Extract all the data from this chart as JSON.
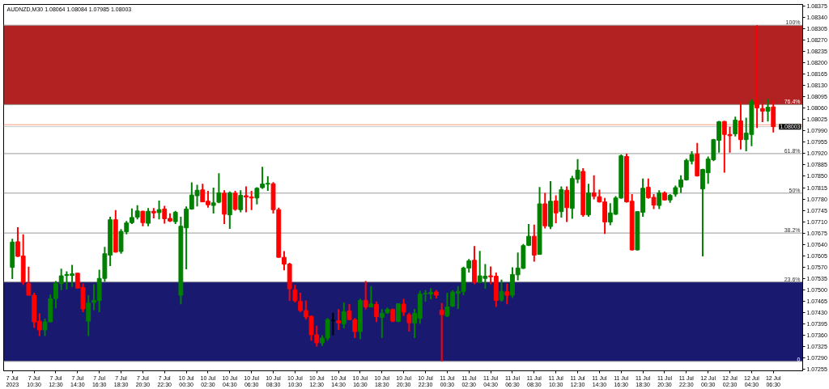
{
  "chart_data": {
    "type": "candlestick",
    "title": "AUDNZD,M30 1.08064 1.08084 1.07985 1.08003",
    "categories": [
      "7 Jul 2023",
      null,
      null,
      null,
      "7 Jul 10:30",
      null,
      null,
      null,
      "7 Jul 12:30",
      null,
      null,
      null,
      "7 Jul 14:30",
      null,
      null,
      null,
      "7 Jul 16:30",
      null,
      null,
      null,
      "7 Jul 18:30",
      null,
      null,
      null,
      "7 Jul 20:30",
      null,
      null,
      null,
      "7 Jul 22:30",
      null,
      null,
      null,
      "10 Jul 00:30",
      null,
      null,
      null,
      "10 Jul 02:30",
      null,
      null,
      null,
      "10 Jul 04:30",
      null,
      null,
      null,
      "10 Jul 06:30",
      null,
      null,
      null,
      "10 Jul 08:30",
      null,
      null,
      null,
      "10 Jul 10:30",
      null,
      null,
      null,
      "10 Jul 12:30",
      null,
      null,
      null,
      "10 Jul 14:30",
      null,
      null,
      null,
      "10 Jul 16:30",
      null,
      null,
      null,
      "10 Jul 18:30",
      null,
      null,
      null,
      "10 Jul 20:30",
      null,
      null,
      null,
      "10 Jul 22:30",
      null,
      null,
      null,
      "11 Jul 00:30",
      null,
      null,
      null,
      "11 Jul 02:30",
      null,
      null,
      null,
      "11 Jul 04:30",
      null,
      null,
      null,
      "11 Jul 06:30",
      null,
      null,
      null,
      "11 Jul 08:30",
      null,
      null,
      null,
      "11 Jul 10:30",
      null,
      null,
      null,
      "11 Jul 12:30",
      null,
      null,
      null,
      "11 Jul 14:30",
      null,
      null,
      null,
      "11 Jul 16:30",
      null,
      null,
      null,
      "11 Jul 18:30",
      null,
      null,
      null,
      "11 Jul 20:30",
      null,
      null,
      null,
      "11 Jul 22:30",
      null,
      null,
      null,
      "12 Jul 00:30",
      null,
      null,
      null,
      "12 Jul 02:30",
      null,
      null,
      null,
      "12 Jul 04:30",
      null,
      null,
      null,
      "12 Jul 06:30"
    ],
    "ohlc": [
      [
        1.07569,
        1.07657,
        1.07533,
        1.07647
      ],
      [
        1.07648,
        1.07693,
        1.07601,
        1.07603
      ],
      [
        1.07604,
        1.07671,
        1.07515,
        1.07523
      ],
      [
        1.07519,
        1.07571,
        1.07483,
        1.07483
      ],
      [
        1.07483,
        1.07491,
        1.07383,
        1.07401
      ],
      [
        1.07403,
        1.07427,
        1.07357,
        1.07376
      ],
      [
        1.07376,
        1.07411,
        1.07357,
        1.07401
      ],
      [
        1.07401,
        1.07485,
        1.074,
        1.07472
      ],
      [
        1.07473,
        1.07527,
        1.07443,
        1.07519
      ],
      [
        1.07519,
        1.07565,
        1.07499,
        1.07543
      ],
      [
        1.07544,
        1.07557,
        1.07501,
        1.07547
      ],
      [
        1.07544,
        1.07577,
        1.07509,
        1.07549
      ],
      [
        1.07551,
        1.07552,
        1.07503,
        1.07505
      ],
      [
        1.07507,
        1.07519,
        1.07431,
        1.07441
      ],
      [
        1.07403,
        1.07483,
        1.07357,
        1.07459
      ],
      [
        1.07461,
        1.07517,
        1.07437,
        1.07467
      ],
      [
        1.07467,
        1.07562,
        1.07431,
        1.07535
      ],
      [
        1.07535,
        1.07632,
        1.07525,
        1.07611
      ],
      [
        1.07607,
        1.07725,
        1.07573,
        1.07716
      ],
      [
        1.07716,
        1.07746,
        1.07615,
        1.07616
      ],
      [
        1.07618,
        1.07687,
        1.07611,
        1.0768
      ],
      [
        1.07679,
        1.07712,
        1.07671,
        1.07706
      ],
      [
        1.07707,
        1.07751,
        1.07703,
        1.07723
      ],
      [
        1.07724,
        1.07761,
        1.07717,
        1.07743
      ],
      [
        1.07742,
        1.07744,
        1.07696,
        1.07707
      ],
      [
        1.07705,
        1.07752,
        1.07696,
        1.07742
      ],
      [
        1.07742,
        1.07752,
        1.0772,
        1.07737
      ],
      [
        1.07738,
        1.07775,
        1.07717,
        1.07747
      ],
      [
        1.07749,
        1.07759,
        1.07704,
        1.07719
      ],
      [
        1.0772,
        1.07736,
        1.07709,
        1.07712
      ],
      [
        1.0771,
        1.07743,
        1.07703,
        1.07739
      ],
      [
        1.07483,
        1.07725,
        1.07455,
        1.07696
      ],
      [
        1.07691,
        1.07757,
        1.07563,
        1.07749
      ],
      [
        1.07749,
        1.07831,
        1.07747,
        1.07792
      ],
      [
        1.0779,
        1.07824,
        1.07757,
        1.07807
      ],
      [
        1.07808,
        1.07827,
        1.0777,
        1.07771
      ],
      [
        1.07773,
        1.07805,
        1.07753,
        1.07762
      ],
      [
        1.0776,
        1.07815,
        1.07735,
        1.07768
      ],
      [
        1.0777,
        1.07859,
        1.07767,
        1.07799
      ],
      [
        1.07798,
        1.07807,
        1.07703,
        1.07733
      ],
      [
        1.07731,
        1.07803,
        1.07688,
        1.07799
      ],
      [
        1.07798,
        1.07805,
        1.07744,
        1.07748
      ],
      [
        1.07747,
        1.07807,
        1.07739,
        1.07791
      ],
      [
        1.0779,
        1.07819,
        1.07739,
        1.07786
      ],
      [
        1.07786,
        1.07805,
        1.07746,
        1.07783
      ],
      [
        1.07783,
        1.07816,
        1.07763,
        1.07813
      ],
      [
        1.07815,
        1.07879,
        1.07811,
        1.07826
      ],
      [
        1.07826,
        1.0785,
        1.07805,
        1.07828
      ],
      [
        1.07827,
        1.07832,
        1.07735,
        1.07747
      ],
      [
        1.07747,
        1.07753,
        1.07599,
        1.076
      ],
      [
        1.076,
        1.07619,
        1.0756,
        1.07579
      ],
      [
        1.07579,
        1.07583,
        1.07466,
        1.07503
      ],
      [
        1.075,
        1.07515,
        1.07461,
        1.07466
      ],
      [
        1.07464,
        1.07491,
        1.07431,
        1.07436
      ],
      [
        1.07436,
        1.07467,
        1.07408,
        1.07416
      ],
      [
        1.07418,
        1.07421,
        1.07343,
        1.07361
      ],
      [
        1.07361,
        1.07389,
        1.07325,
        1.07336
      ],
      [
        1.07336,
        1.0736,
        1.07327,
        1.07351
      ],
      [
        1.07351,
        1.07413,
        1.07343,
        1.07408
      ],
      [
        1.07405,
        1.07429,
        1.0736,
        1.07405
      ],
      [
        1.07404,
        1.0744,
        1.07376,
        1.07398
      ],
      [
        1.07395,
        1.07461,
        1.07381,
        1.07432
      ],
      [
        1.07435,
        1.07456,
        1.07407,
        1.07408
      ],
      [
        1.07407,
        1.07413,
        1.07351,
        1.07371
      ],
      [
        1.07371,
        1.07472,
        1.07347,
        1.07467
      ],
      [
        1.07467,
        1.07527,
        1.07439,
        1.07447
      ],
      [
        1.07447,
        1.07511,
        1.07445,
        1.07456
      ],
      [
        1.07455,
        1.07464,
        1.074,
        1.07417
      ],
      [
        1.07415,
        1.0744,
        1.07351,
        1.07427
      ],
      [
        1.07429,
        1.07445,
        1.07426,
        1.07439
      ],
      [
        1.07439,
        1.07442,
        1.074,
        1.07403
      ],
      [
        1.07402,
        1.07458,
        1.074,
        1.07457
      ],
      [
        1.07456,
        1.07472,
        1.07419,
        1.07431
      ],
      [
        1.07423,
        1.07429,
        1.07371,
        1.07398
      ],
      [
        1.07397,
        1.07441,
        1.07351,
        1.07427
      ],
      [
        1.07412,
        1.07497,
        1.07395,
        1.07487
      ],
      [
        1.07487,
        1.07499,
        1.07463,
        1.07489
      ],
      [
        1.07487,
        1.07505,
        1.07471,
        1.07492
      ],
      [
        1.07493,
        1.07499,
        1.07473,
        1.07483
      ],
      [
        1.07437,
        1.07459,
        1.07279,
        1.07423
      ],
      [
        1.07419,
        1.07491,
        1.07415,
        1.07447
      ],
      [
        1.07449,
        1.07499,
        1.07447,
        1.07493
      ],
      [
        1.07489,
        1.07511,
        1.07441,
        1.07495
      ],
      [
        1.07495,
        1.07571,
        1.07483,
        1.07567
      ],
      [
        1.07567,
        1.07595,
        1.07553,
        1.07589
      ],
      [
        1.07591,
        1.07635,
        1.07517,
        1.07523
      ],
      [
        1.07523,
        1.0762,
        1.07521,
        1.07543
      ],
      [
        1.07535,
        1.07579,
        1.07503,
        1.07542
      ],
      [
        1.07543,
        1.07572,
        1.07517,
        1.0754
      ],
      [
        1.07542,
        1.07553,
        1.07447,
        1.07467
      ],
      [
        1.07468,
        1.07531,
        1.07463,
        1.07495
      ],
      [
        1.07494,
        1.07519,
        1.07455,
        1.07483
      ],
      [
        1.07483,
        1.07569,
        1.07475,
        1.07547
      ],
      [
        1.07546,
        1.07615,
        1.07529,
        1.07567
      ],
      [
        1.07566,
        1.07641,
        1.07564,
        1.07636
      ],
      [
        1.07637,
        1.07703,
        1.07635,
        1.07665
      ],
      [
        1.07665,
        1.07701,
        1.07587,
        1.07607
      ],
      [
        1.07609,
        1.07817,
        1.07609,
        1.07765
      ],
      [
        1.07765,
        1.07799,
        1.07689,
        1.07697
      ],
      [
        1.07695,
        1.07835,
        1.07687,
        1.07773
      ],
      [
        1.07774,
        1.07791,
        1.07705,
        1.07737
      ],
      [
        1.07741,
        1.07819,
        1.07723,
        1.07809
      ],
      [
        1.07807,
        1.07819,
        1.07709,
        1.07753
      ],
      [
        1.07751,
        1.07851,
        1.07719,
        1.07843
      ],
      [
        1.07841,
        1.07903,
        1.07829,
        1.07869
      ],
      [
        1.07865,
        1.07875,
        1.07725,
        1.07731
      ],
      [
        1.07731,
        1.07827,
        1.07725,
        1.07799
      ],
      [
        1.07799,
        1.07853,
        1.07779,
        1.07788
      ],
      [
        1.07787,
        1.07809,
        1.07769,
        1.07771
      ],
      [
        1.07771,
        1.07783,
        1.07672,
        1.07709
      ],
      [
        1.07709,
        1.07767,
        1.07699,
        1.07737
      ],
      [
        1.07733,
        1.07789,
        1.07731,
        1.07783
      ],
      [
        1.07783,
        1.07917,
        1.07781,
        1.07913
      ],
      [
        1.07911,
        1.0792,
        1.07769,
        1.07771
      ],
      [
        1.07773,
        1.07795,
        1.07621,
        1.07623
      ],
      [
        1.07623,
        1.07741,
        1.07621,
        1.07741
      ],
      [
        1.07739,
        1.07843,
        1.07725,
        1.07813
      ],
      [
        1.07816,
        1.07843,
        1.07781,
        1.07784
      ],
      [
        1.07785,
        1.07795,
        1.07749,
        1.07761
      ],
      [
        1.0776,
        1.07807,
        1.07749,
        1.07799
      ],
      [
        1.07799,
        1.07803,
        1.07775,
        1.07777
      ],
      [
        1.07777,
        1.07795,
        1.07768,
        1.07791
      ],
      [
        1.07795,
        1.07821,
        1.07787,
        1.07815
      ],
      [
        1.07817,
        1.07853,
        1.07799,
        1.07839
      ],
      [
        1.07839,
        1.07904,
        1.07837,
        1.07899
      ],
      [
        1.07897,
        1.07927,
        1.07887,
        1.07917
      ],
      [
        1.07919,
        1.07953,
        1.07849,
        1.07851
      ],
      [
        1.07811,
        1.07873,
        1.07603,
        1.07871
      ],
      [
        1.07861,
        1.07911,
        1.07827,
        1.07903
      ],
      [
        1.07901,
        1.07965,
        1.07897,
        1.07963
      ],
      [
        1.07961,
        1.08021,
        1.07923,
        1.08018
      ],
      [
        1.08019,
        1.08021,
        1.07861,
        1.07979
      ],
      [
        1.07979,
        1.08003,
        1.07923,
        1.07975
      ],
      [
        1.07981,
        1.08034,
        1.07973,
        1.08023
      ],
      [
        1.08021,
        1.08079,
        1.07933,
        1.07963
      ],
      [
        1.07963,
        1.08031,
        1.07927,
        1.07983
      ],
      [
        1.07979,
        1.08088,
        1.07943,
        1.0808
      ],
      [
        1.08083,
        1.08316,
        1.07999,
        1.08061
      ],
      [
        1.08059,
        1.08075,
        1.08017,
        1.08051
      ],
      [
        1.08051,
        1.08089,
        1.08019,
        1.08063
      ],
      [
        1.08064,
        1.08084,
        1.07985,
        1.08003
      ]
    ],
    "colors": [
      "#008000",
      "#ff0000",
      "#ff0000",
      "#ff0000",
      "#ff0000",
      "#ff0000",
      "#008000",
      "#008000",
      "#008000",
      "#008000",
      "#008000",
      "#008000",
      "#ff0000",
      "#ff0000",
      "#008000",
      "#008000",
      "#008000",
      "#008000",
      "#008000",
      "#ff0000",
      "#008000",
      "#008000",
      "#008000",
      "#008000",
      "#ff0000",
      "#008000",
      "#ff0000",
      "#008000",
      "#ff0000",
      "#ff0000",
      "#008000",
      "#008000",
      "#008000",
      "#008000",
      "#008000",
      "#ff0000",
      "#ff0000",
      "#008000",
      "#008000",
      "#ff0000",
      "#008000",
      "#ff0000",
      "#008000",
      "#ff0000",
      "#ff0000",
      "#008000",
      "#008000",
      "#008000",
      "#ff0000",
      "#ff0000",
      "#ff0000",
      "#ff0000",
      "#ff0000",
      "#ff0000",
      "#ff0000",
      "#ff0000",
      "#ff0000",
      "#008000",
      "#008000",
      "#000000",
      "#ff0000",
      "#008000",
      "#ff0000",
      "#ff0000",
      "#008000",
      "#ff0000",
      "#008000",
      "#ff0000",
      "#008000",
      "#008000",
      "#ff0000",
      "#008000",
      "#ff0000",
      "#ff0000",
      "#008000",
      "#008000",
      "#008000",
      "#008000",
      "#ff0000",
      "#ff0000",
      "#008000",
      "#008000",
      "#008000",
      "#008000",
      "#008000",
      "#ff0000",
      "#008000",
      "#008000",
      "#ff0000",
      "#ff0000",
      "#008000",
      "#ff0000",
      "#008000",
      "#008000",
      "#008000",
      "#008000",
      "#ff0000",
      "#008000",
      "#ff0000",
      "#008000",
      "#ff0000",
      "#008000",
      "#ff0000",
      "#008000",
      "#008000",
      "#ff0000",
      "#008000",
      "#ff0000",
      "#ff0000",
      "#ff0000",
      "#008000",
      "#008000",
      "#008000",
      "#ff0000",
      "#ff0000",
      "#008000",
      "#008000",
      "#ff0000",
      "#ff0000",
      "#008000",
      "#ff0000",
      "#008000",
      "#008000",
      "#008000",
      "#008000",
      "#008000",
      "#ff0000",
      "#008000",
      "#008000",
      "#008000",
      "#008000",
      "#ff0000",
      "#ff0000",
      "#008000",
      "#ff0000",
      "#008000",
      "#008000",
      "#ff0000",
      "#ff0000",
      "#008000",
      "#ff0000"
    ],
    "ylim": [
      1.0725,
      1.0838
    ],
    "yticks": [
      {
        "value": 1.07255,
        "label": "1.07255"
      },
      {
        "value": 1.0729,
        "label": "1.07290"
      },
      {
        "value": 1.07325,
        "label": "1.07325"
      },
      {
        "value": 1.0736,
        "label": "1.07360"
      },
      {
        "value": 1.07395,
        "label": "1.07395"
      },
      {
        "value": 1.0743,
        "label": "1.07430"
      },
      {
        "value": 1.07465,
        "label": "1.07465"
      },
      {
        "value": 1.075,
        "label": "1.07500"
      },
      {
        "value": 1.07535,
        "label": "1.07535"
      },
      {
        "value": 1.0757,
        "label": "1.07570"
      },
      {
        "value": 1.07605,
        "label": "1.07605"
      },
      {
        "value": 1.0764,
        "label": "1.07640"
      },
      {
        "value": 1.07675,
        "label": "1.07675"
      },
      {
        "value": 1.0771,
        "label": "1.07710"
      },
      {
        "value": 1.07745,
        "label": "1.07745"
      },
      {
        "value": 1.0778,
        "label": "1.07780"
      },
      {
        "value": 1.07815,
        "label": "1.07815"
      },
      {
        "value": 1.0785,
        "label": "1.07850"
      },
      {
        "value": 1.07885,
        "label": "1.07885"
      },
      {
        "value": 1.0792,
        "label": "1.07920"
      },
      {
        "value": 1.07955,
        "label": "1.07955"
      },
      {
        "value": 1.0799,
        "label": "1.07990"
      },
      {
        "value": 1.08025,
        "label": "1.08025"
      },
      {
        "value": 1.0806,
        "label": "1.08060"
      },
      {
        "value": 1.08095,
        "label": "1.08095"
      },
      {
        "value": 1.0813,
        "label": "1.08130"
      },
      {
        "value": 1.08165,
        "label": "1.08165"
      },
      {
        "value": 1.082,
        "label": "1.08200"
      },
      {
        "value": 1.08235,
        "label": "1.08235"
      },
      {
        "value": 1.0827,
        "label": "1.08270"
      },
      {
        "value": 1.08305,
        "label": "1.08305"
      },
      {
        "value": 1.0834,
        "label": "1.08340"
      },
      {
        "value": 1.08375,
        "label": "1.08375"
      }
    ],
    "bands": [
      {
        "axis": "y",
        "from": 1.08071,
        "to": 1.08316,
        "color": "#b22222"
      },
      {
        "axis": "y",
        "from": 1.07279,
        "to": 1.07524,
        "color": "#191970"
      }
    ],
    "ref_lines": [
      {
        "axis": "y",
        "value": 1.08316,
        "color": "#9a9a9a"
      },
      {
        "axis": "y",
        "value": 1.08071,
        "color": "#9a9a9a"
      },
      {
        "axis": "y",
        "value": 1.0792,
        "color": "#9a9a9a"
      },
      {
        "axis": "y",
        "value": 1.07798,
        "color": "#9a9a9a"
      },
      {
        "axis": "y",
        "value": 1.07675,
        "color": "#9a9a9a"
      },
      {
        "axis": "y",
        "value": 1.07524,
        "color": "#9a9a9a"
      },
      {
        "axis": "y",
        "value": 1.07279,
        "color": "#9a9a9a"
      },
      {
        "axis": "y",
        "value": 1.08009,
        "color": "#ff9f7f"
      },
      {
        "axis": "y",
        "value": 1.08003,
        "label": "1.08003",
        "color": "#c8c8c8"
      }
    ],
    "annotations": [
      {
        "text": "100%",
        "y": 1.08316
      },
      {
        "text": "76.4%",
        "y": 1.08071
      },
      {
        "text": "61.8%",
        "y": 1.0792
      },
      {
        "text": "50%",
        "y": 1.07798
      },
      {
        "text": "38.2%",
        "y": 1.07675
      },
      {
        "text": "23.6%",
        "y": 1.07524
      },
      {
        "text": "0",
        "y": 1.07279
      }
    ],
    "grid": false
  }
}
